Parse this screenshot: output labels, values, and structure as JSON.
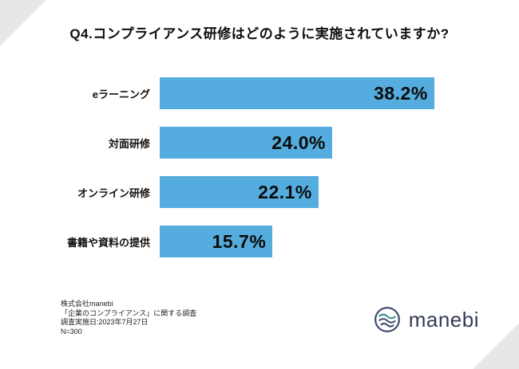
{
  "page": {
    "title": "Q4.コンプライアンス研修はどのように実施されていますか?"
  },
  "chart_data": {
    "type": "bar",
    "orientation": "horizontal",
    "title": "Q4.コンプライアンス研修はどのように実施されていますか?",
    "categories": [
      "eラーニング",
      "対面研修",
      "オンライン研修",
      "書籍や資料の提供"
    ],
    "values": [
      38.2,
      24.0,
      22.1,
      15.7
    ],
    "labels": [
      "38.2%",
      "24.0%",
      "22.1%",
      "15.7%"
    ],
    "xlabel": "",
    "ylabel": "",
    "xlim": [
      0,
      45
    ],
    "grid": false,
    "legend": "none",
    "bar_color": "#55acde",
    "value_label_position": "inside-end"
  },
  "footer": {
    "source_lines": [
      "株式会社manebi",
      "「企業のコンプライアンス」に関する調査",
      "調査実施日:2023年7月27日",
      "N=300"
    ],
    "logo_text": "manebi",
    "logo_colors": {
      "navy": "#333a56",
      "teal": "#2f8c8c"
    }
  }
}
